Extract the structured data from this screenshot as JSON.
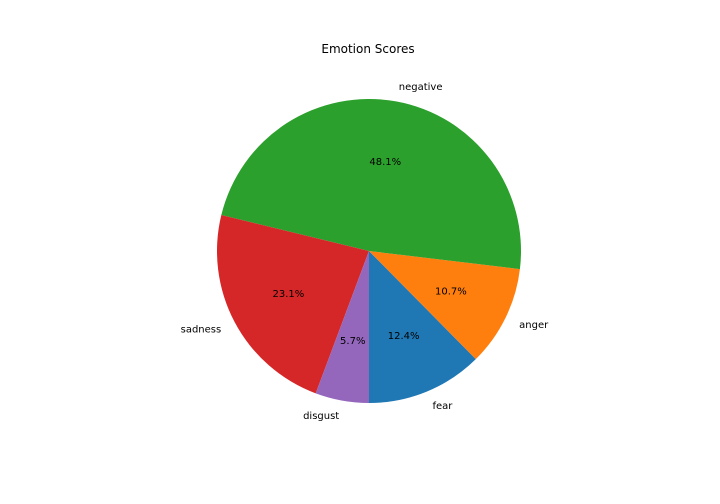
{
  "chart_data": {
    "type": "pie",
    "title": "Emotion Scores",
    "start_angle_deg": 270,
    "direction": "counterclockwise",
    "colors": {
      "fear": "#1f77b4",
      "anger": "#ff7f0e",
      "negative": "#2ca02c",
      "sadness": "#d62728",
      "disgust": "#9467bd"
    },
    "slices": [
      {
        "label": "fear",
        "value": 12.4,
        "pct_label": "12.4%",
        "color": "#1f77b4"
      },
      {
        "label": "anger",
        "value": 10.7,
        "pct_label": "10.7%",
        "color": "#ff7f0e"
      },
      {
        "label": "negative",
        "value": 48.1,
        "pct_label": "48.1%",
        "color": "#2ca02c"
      },
      {
        "label": "sadness",
        "value": 23.1,
        "pct_label": "23.1%",
        "color": "#d62728"
      },
      {
        "label": "disgust",
        "value": 5.7,
        "pct_label": "5.7%",
        "color": "#9467bd"
      }
    ]
  }
}
